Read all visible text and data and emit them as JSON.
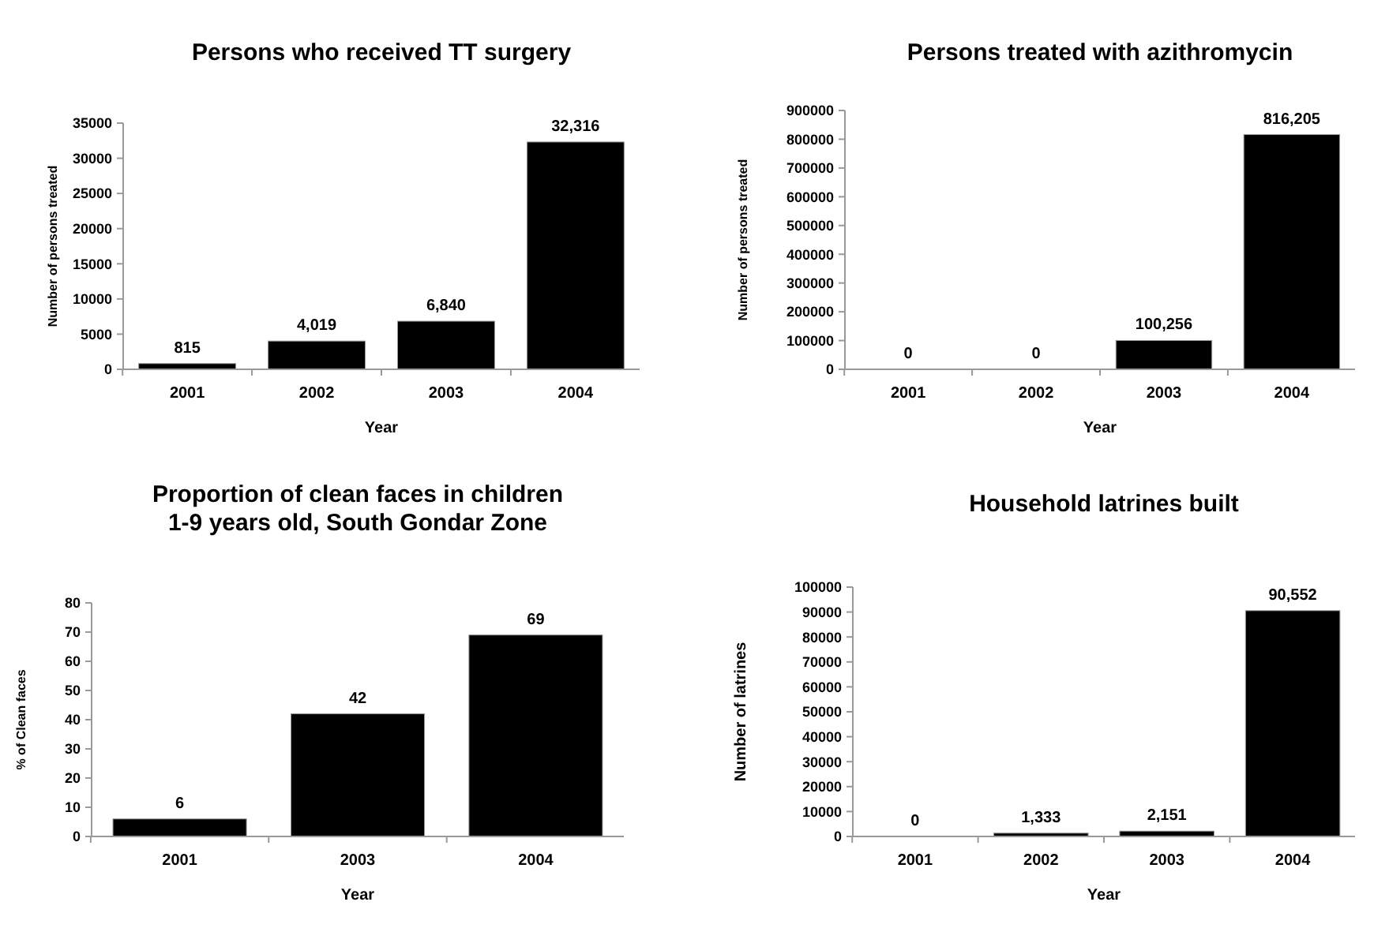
{
  "chart_data": [
    {
      "type": "bar",
      "title": "Persons who received TT surgery",
      "xlabel": "Year",
      "ylabel": "Number of persons treated",
      "categories": [
        "2001",
        "2002",
        "2003",
        "2004"
      ],
      "values": [
        815,
        4019,
        6840,
        32316
      ],
      "color": "#000000",
      "value_labels": [
        "815",
        "4,019",
        "6,840",
        "32,316"
      ],
      "ylim": [
        0,
        35000
      ],
      "yticks": [
        0,
        5000,
        10000,
        15000,
        20000,
        25000,
        30000,
        35000
      ]
    },
    {
      "type": "bar",
      "title": "Persons treated with azithromycin",
      "xlabel": "Year",
      "ylabel": "Number of persons treated",
      "categories": [
        "2001",
        "2002",
        "2003",
        "2004"
      ],
      "values": [
        0,
        0,
        100256,
        816205
      ],
      "color": "#000000",
      "value_labels": [
        "0",
        "0",
        "100,256",
        "816,205"
      ],
      "ylim": [
        0,
        900000
      ],
      "yticks": [
        0,
        100000,
        200000,
        300000,
        400000,
        500000,
        600000,
        700000,
        800000,
        900000
      ]
    },
    {
      "type": "bar",
      "title": "Proportion of clean faces in children\n1-9 years old, South Gondar Zone",
      "xlabel": "Year",
      "ylabel": "% of Clean faces",
      "categories": [
        "2001",
        "2003",
        "2004"
      ],
      "values": [
        6,
        42,
        69
      ],
      "color": "#000000",
      "data_labels": true,
      "ylim": [
        0,
        80
      ],
      "yticks": [
        0,
        10,
        20,
        30,
        40,
        50,
        60,
        70,
        80
      ]
    },
    {
      "type": "bar",
      "title": "Household latrines built",
      "xlabel": "Year",
      "ylabel": "Number of latrines",
      "categories": [
        "2001",
        "2002",
        "2003",
        "2004"
      ],
      "values": [
        0,
        1333,
        2151,
        90552
      ],
      "color": "#000000",
      "value_labels": [
        "0",
        "1,333",
        "2,151",
        "90,552"
      ],
      "ylim": [
        0,
        100000
      ],
      "yticks": [
        0,
        10000,
        20000,
        30000,
        40000,
        50000,
        60000,
        70000,
        80000,
        90000,
        100000
      ]
    }
  ]
}
